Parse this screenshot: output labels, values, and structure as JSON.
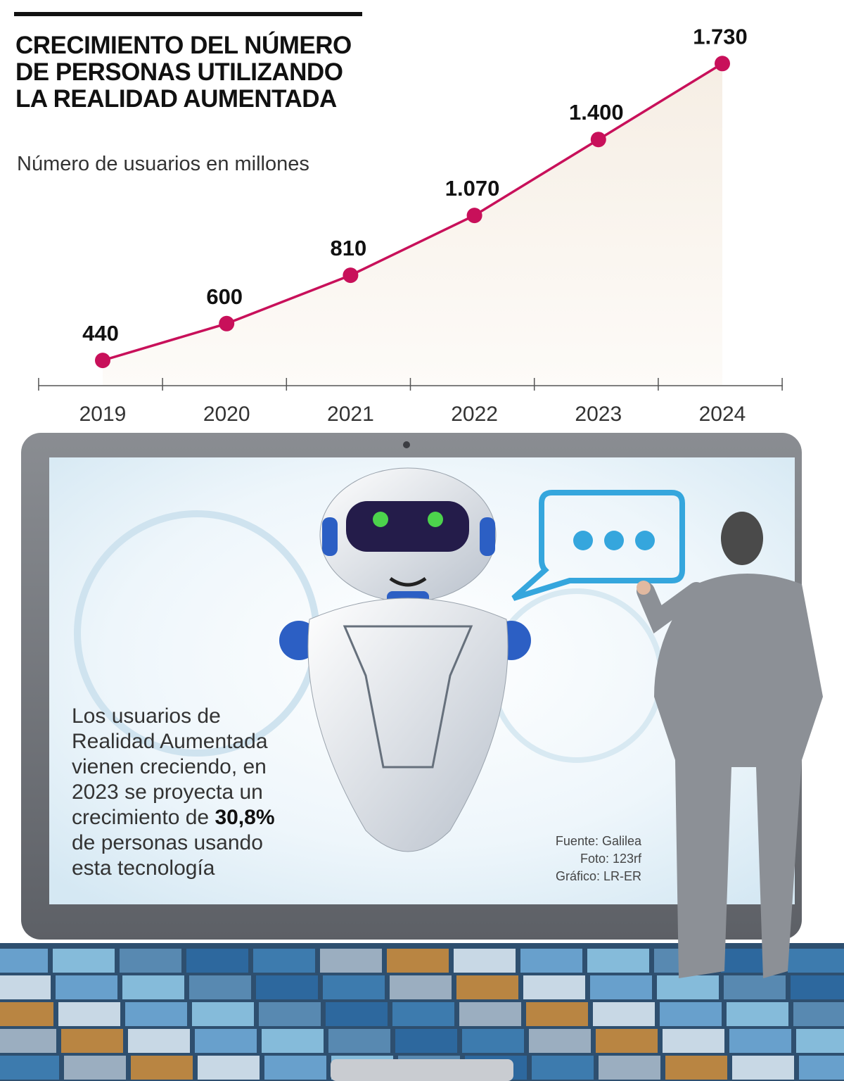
{
  "chart_data": {
    "type": "line",
    "title": [
      "CRECIMIENTO DEL NÚMERO",
      "DE PERSONAS UTILIZANDO",
      "LA REALIDAD AUMENTADA"
    ],
    "subtitle": "Número de usuarios en millones",
    "categories": [
      "2019",
      "2020",
      "2021",
      "2022",
      "2023",
      "2024"
    ],
    "values": [
      440,
      600,
      810,
      1070,
      1400,
      1730
    ],
    "value_labels": [
      "440",
      "600",
      "810",
      "1.070",
      "1.400",
      "1.730"
    ],
    "color": "#c8105a",
    "annotation": {
      "before": "Los usuarios de Realidad Aumentada vienen creciendo, en 2023 se proyecta un crecimiento de",
      "highlight": "30,8%",
      "after": "de personas usando esta tecnología"
    },
    "sources": [
      "Fuente: Galilea",
      "Foto: 123rf",
      "Gráfico: LR-ER"
    ]
  }
}
